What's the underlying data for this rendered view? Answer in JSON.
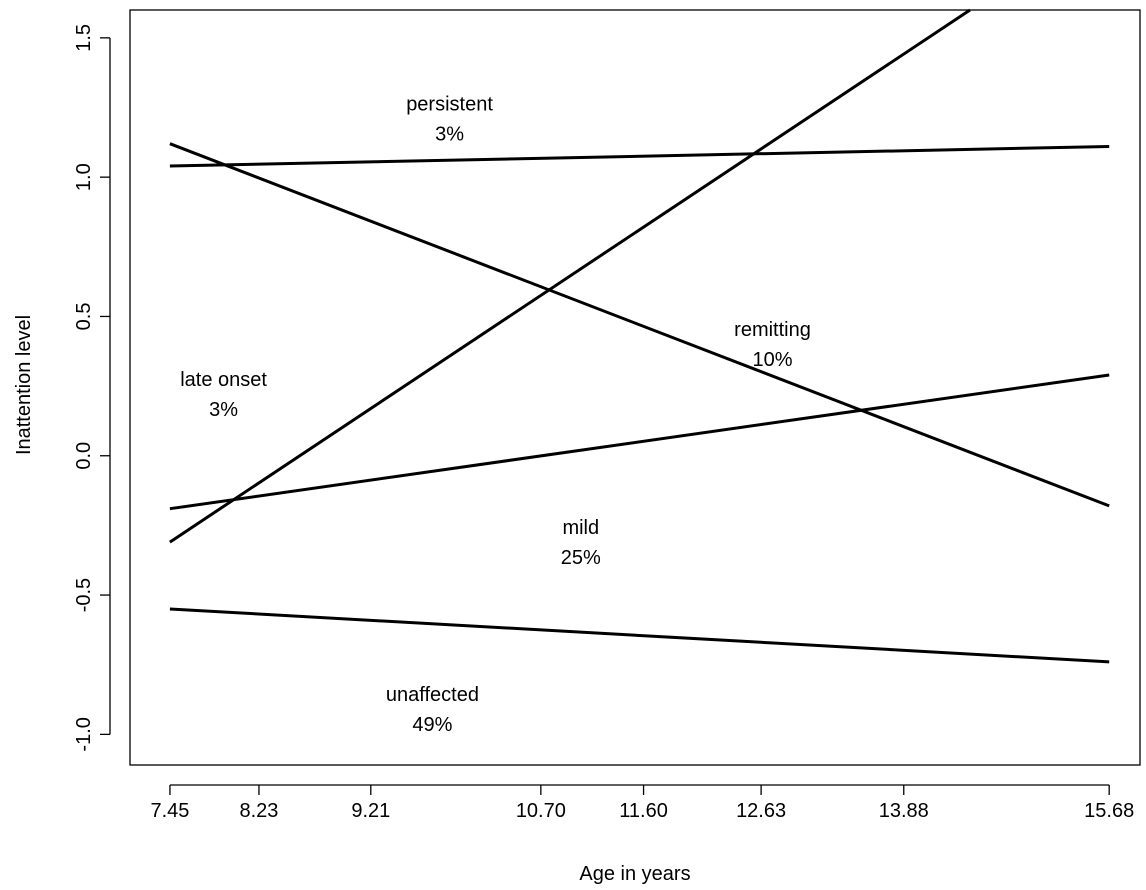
{
  "chart_data": {
    "type": "line",
    "title": "",
    "xlabel": "Age in years",
    "ylabel": "Inattention level",
    "xlim": [
      7.1,
      15.95
    ],
    "ylim": [
      -1.11,
      1.6
    ],
    "x_ticks": [
      7.45,
      8.23,
      9.21,
      10.7,
      11.6,
      12.63,
      13.88,
      15.68
    ],
    "x_tick_labels": [
      "7.45",
      "8.23",
      "9.21",
      "10.70",
      "11.60",
      "12.63",
      "13.88",
      "15.68"
    ],
    "y_ticks": [
      -1.0,
      -0.5,
      0.0,
      0.5,
      1.0,
      1.5
    ],
    "y_tick_labels": [
      "-1.0",
      "-0.5",
      "0.0",
      "0.5",
      "1.0",
      "1.5"
    ],
    "grid": false,
    "legend": "none",
    "series": [
      {
        "name": "persistent",
        "x": [
          7.45,
          15.68
        ],
        "y": [
          1.04,
          1.11
        ]
      },
      {
        "name": "remitting",
        "x": [
          7.45,
          15.68
        ],
        "y": [
          1.12,
          -0.18
        ]
      },
      {
        "name": "late onset",
        "x": [
          7.45,
          14.46
        ],
        "y": [
          -0.31,
          1.6
        ]
      },
      {
        "name": "mild",
        "x": [
          7.45,
          15.68
        ],
        "y": [
          -0.19,
          0.29
        ]
      },
      {
        "name": "unaffected",
        "x": [
          7.45,
          15.68
        ],
        "y": [
          -0.55,
          -0.74
        ]
      }
    ],
    "annotations": [
      {
        "lines": [
          "persistent",
          "3%"
        ],
        "x": 9.9,
        "y": 1.24
      },
      {
        "lines": [
          "remitting",
          "10%"
        ],
        "x": 12.73,
        "y": 0.43
      },
      {
        "lines": [
          "late onset",
          "3%"
        ],
        "x": 7.92,
        "y": 0.25
      },
      {
        "lines": [
          "mild",
          "25%"
        ],
        "x": 11.05,
        "y": -0.28
      },
      {
        "lines": [
          "unaffected",
          "49%"
        ],
        "x": 9.75,
        "y": -0.88
      }
    ]
  }
}
